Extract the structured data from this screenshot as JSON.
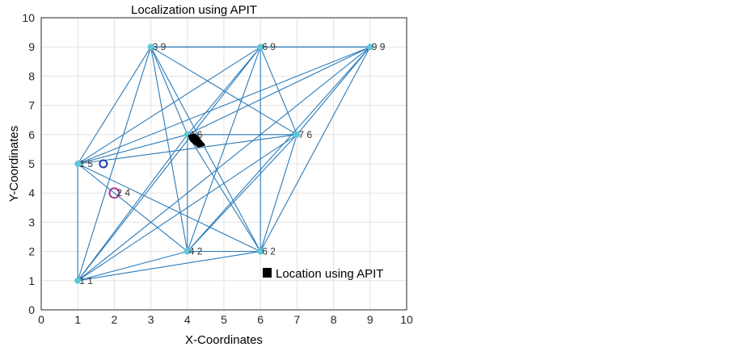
{
  "chart_data": {
    "type": "scatter",
    "title": "Localization using APIT",
    "xlabel": "X-Coordinates",
    "ylabel": "Y-Coordinates",
    "xlim": [
      0,
      10
    ],
    "ylim": [
      0,
      10
    ],
    "xticks": [
      "0",
      "1",
      "2",
      "3",
      "4",
      "5",
      "6",
      "7",
      "8",
      "9",
      "10"
    ],
    "yticks": [
      "0",
      "1",
      "2",
      "3",
      "4",
      "5",
      "6",
      "7",
      "8",
      "9",
      "10"
    ],
    "grid": true,
    "anchors": [
      {
        "x": 1,
        "y": 1,
        "label": "1 1"
      },
      {
        "x": 1,
        "y": 5,
        "label": "1 5"
      },
      {
        "x": 3,
        "y": 9,
        "label": "3 9"
      },
      {
        "x": 4,
        "y": 2,
        "label": "4 2"
      },
      {
        "x": 4,
        "y": 6,
        "label": "4 6"
      },
      {
        "x": 6,
        "y": 2,
        "label": "6 2"
      },
      {
        "x": 6,
        "y": 9,
        "label": "6 9"
      },
      {
        "x": 7,
        "y": 6,
        "label": "7 6"
      },
      {
        "x": 9,
        "y": 9,
        "label": "9 9"
      }
    ],
    "unknown_node": {
      "x": 2,
      "y": 4,
      "label": "2 4"
    },
    "blue_circle": {
      "x": 1.7,
      "y": 5
    },
    "apit_location": [
      [
        4.05,
        5.95
      ],
      [
        4.2,
        6.0
      ],
      [
        4.45,
        5.65
      ],
      [
        4.3,
        5.6
      ],
      [
        4.1,
        5.8
      ]
    ],
    "legend": {
      "entries": [
        "Location using APIT"
      ],
      "placement": "bottom-right"
    },
    "colors": {
      "lines": "#2b7bba",
      "anchor": "#5ec8d8",
      "unknown": "#a03a9a",
      "blue_circle": "#1f3aa8",
      "location": "#000000"
    }
  }
}
